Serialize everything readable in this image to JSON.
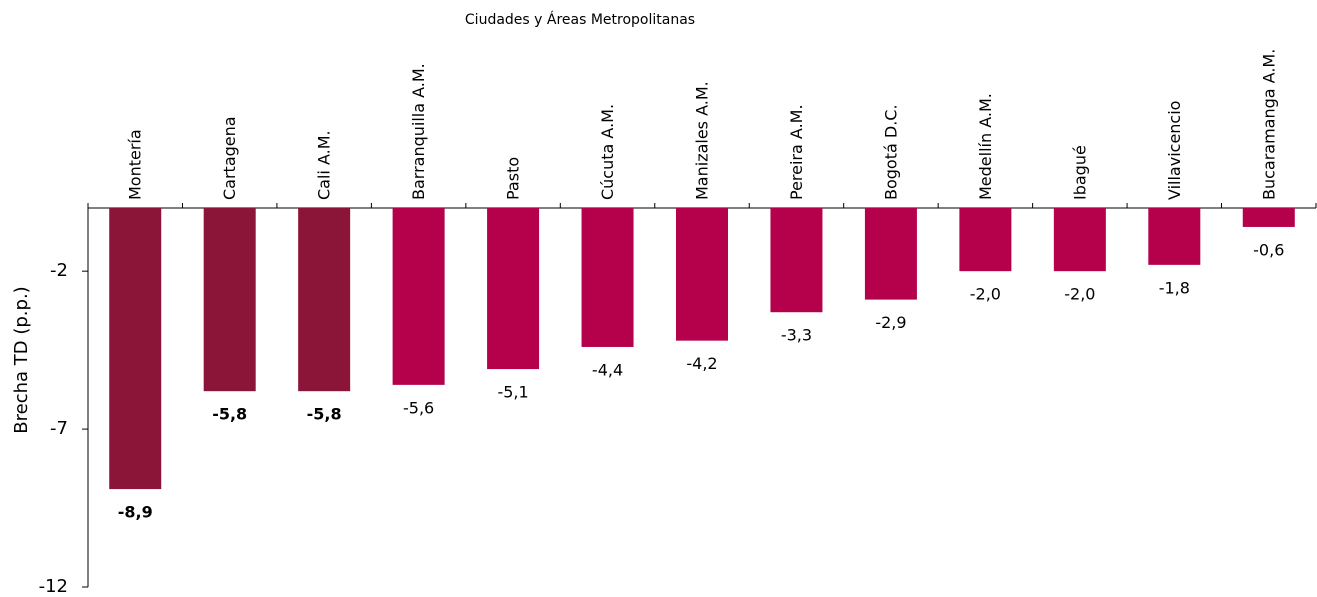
{
  "chart_data": {
    "type": "bar",
    "title": "Ciudades y  Áreas Metropolitanas",
    "y_label": "Brecha TD (p.p.)",
    "categories": [
      "Montería",
      "Cartagena",
      "Cali A.M.",
      "Barranquilla A.M.",
      "Pasto",
      "Cúcuta A.M.",
      "Manizales A.M.",
      "Pereira A.M.",
      "Bogotá D.C.",
      "Medellín A.M.",
      "Ibagué",
      "Villavicencio",
      "Bucaramanga A.M."
    ],
    "values": [
      -8.9,
      -5.8,
      -5.8,
      -5.6,
      -5.1,
      -4.4,
      -4.2,
      -3.3,
      -2.9,
      -2.0,
      -2.0,
      -1.8,
      -0.6
    ],
    "value_labels": [
      "-8,9",
      "-5,8",
      "-5,8",
      "-5,6",
      "-5,1",
      "-4,4",
      "-4,2",
      "-3,3",
      "-2,9",
      "-2,0",
      "-2,0",
      "-1,8",
      "-0,6"
    ],
    "colors": [
      "#8b1538",
      "#8b1538",
      "#8b1538",
      "#b5004b",
      "#b5004b",
      "#b5004b",
      "#b5004b",
      "#b5004b",
      "#b5004b",
      "#b5004b",
      "#b5004b",
      "#b5004b",
      "#b5004b"
    ],
    "label_weights": [
      "bold",
      "bold",
      "bold",
      "normal",
      "normal",
      "normal",
      "normal",
      "normal",
      "normal",
      "normal",
      "normal",
      "normal",
      "normal"
    ],
    "ylim": [
      -12,
      0
    ],
    "yticks": [
      -2,
      -7,
      -12
    ],
    "grid": false
  }
}
